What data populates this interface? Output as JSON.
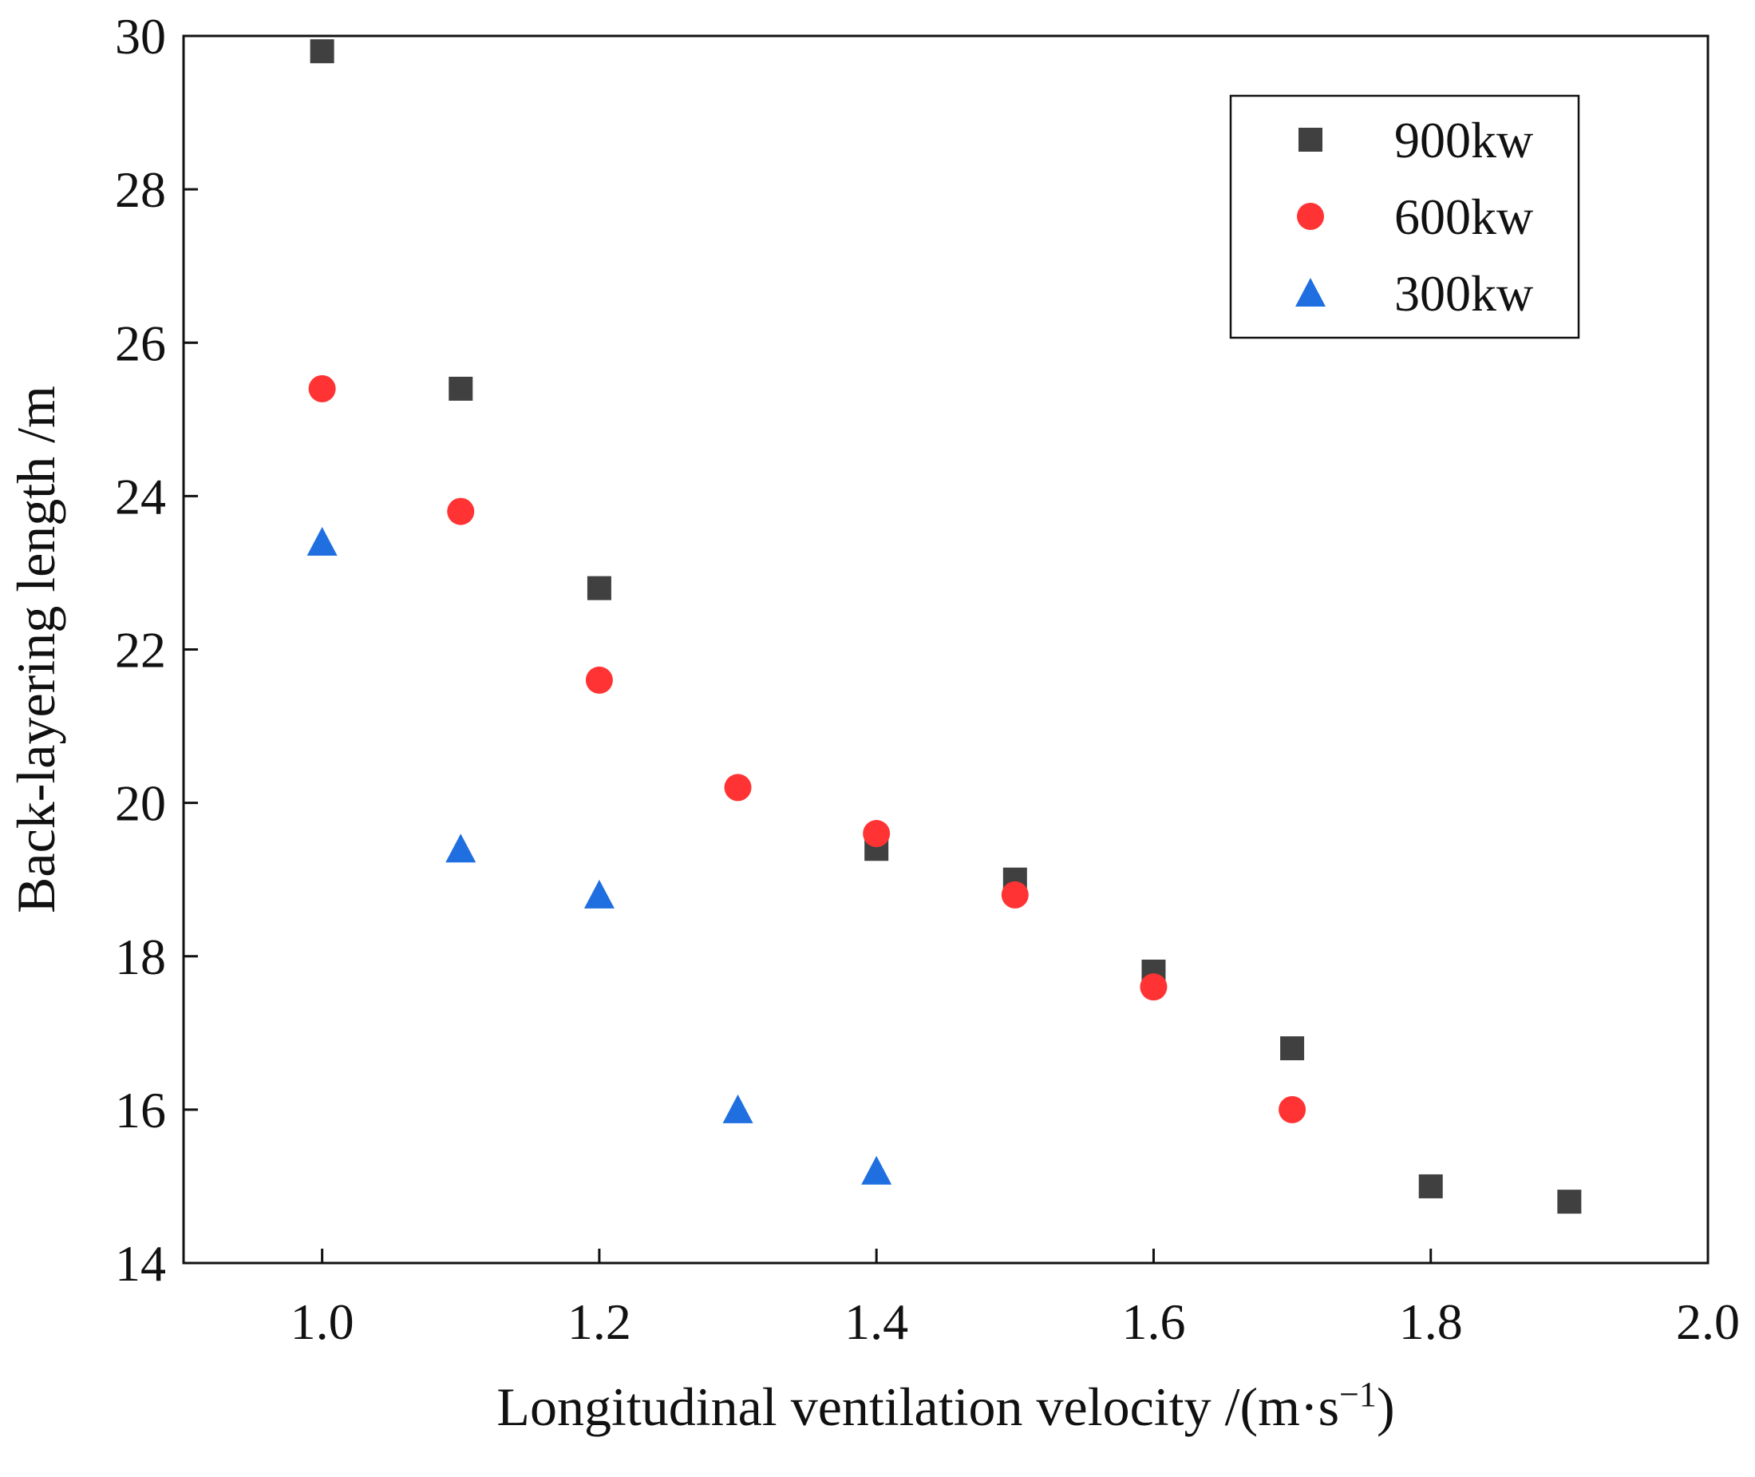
{
  "chart_data": {
    "type": "scatter",
    "title": "",
    "xlabel": "Longitudinal ventilation velocity /(m·s",
    "xlabel_sup": "−1",
    "xlabel_end": ")",
    "ylabel": "Back-layering length /m",
    "xlim": [
      0.9,
      2.0
    ],
    "ylim": [
      14,
      30
    ],
    "x_ticks": [
      1.0,
      1.2,
      1.4,
      1.6,
      1.8,
      2.0
    ],
    "x_tick_labels": [
      "1.0",
      "1.2",
      "1.4",
      "1.6",
      "1.8",
      "2.0"
    ],
    "y_ticks": [
      14,
      16,
      18,
      20,
      22,
      24,
      26,
      28,
      30
    ],
    "y_tick_labels": [
      "14",
      "16",
      "18",
      "20",
      "22",
      "24",
      "26",
      "28",
      "30"
    ],
    "grid": false,
    "legend_position": "top-right",
    "series": [
      {
        "name": "900kw",
        "marker": "square",
        "color": "#404040",
        "x": [
          1.0,
          1.1,
          1.2,
          1.4,
          1.5,
          1.6,
          1.7,
          1.8,
          1.9
        ],
        "y": [
          29.8,
          25.4,
          22.8,
          19.4,
          19.0,
          17.8,
          16.8,
          15.0,
          14.8
        ]
      },
      {
        "name": "600kw",
        "marker": "circle",
        "color": "#ff3333",
        "x": [
          1.0,
          1.1,
          1.2,
          1.3,
          1.4,
          1.5,
          1.6,
          1.7
        ],
        "y": [
          25.4,
          23.8,
          21.6,
          20.2,
          19.6,
          18.8,
          17.6,
          16.0
        ]
      },
      {
        "name": "300kw",
        "marker": "triangle",
        "color": "#1f6fe0",
        "x": [
          1.0,
          1.1,
          1.2,
          1.3,
          1.4
        ],
        "y": [
          23.4,
          19.4,
          18.8,
          16.0,
          15.2
        ]
      }
    ]
  }
}
